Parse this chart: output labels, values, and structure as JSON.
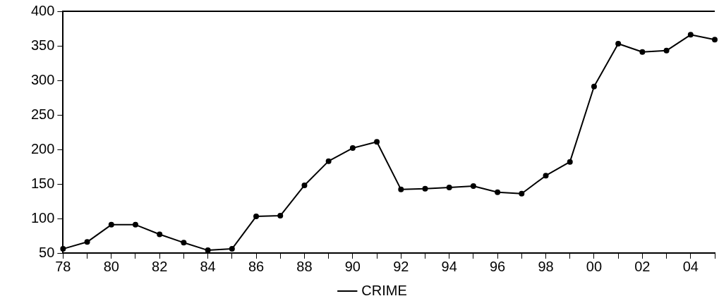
{
  "chart_data": {
    "type": "line",
    "categories": [
      "78",
      null,
      "80",
      null,
      "82",
      null,
      "84",
      null,
      "86",
      null,
      "88",
      null,
      "90",
      null,
      "92",
      null,
      "94",
      null,
      "96",
      null,
      "98",
      null,
      "00",
      null,
      "02",
      null,
      "04",
      null
    ],
    "series": [
      {
        "name": "CRIME",
        "color": "#000000",
        "values": [
          56,
          66,
          91,
          91,
          77,
          65,
          54,
          56,
          103,
          104,
          148,
          183,
          202,
          211,
          142,
          143,
          145,
          147,
          138,
          136,
          162,
          182,
          291,
          353,
          341,
          343,
          366,
          359
        ]
      }
    ],
    "ylim": [
      50,
      400
    ],
    "yticks": [
      50,
      100,
      150,
      200,
      250,
      300,
      350,
      400
    ],
    "grid": false,
    "legend": "bottom",
    "marker": "circle",
    "line_style": "solid"
  }
}
